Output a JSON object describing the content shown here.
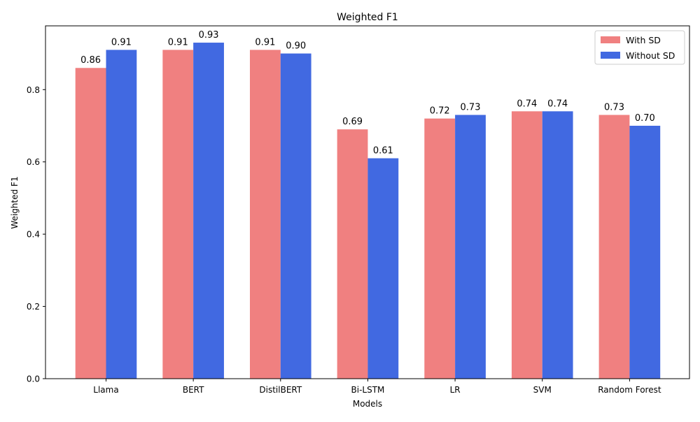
{
  "chart_data": {
    "type": "bar",
    "title": "Weighted F1",
    "xlabel": "Models",
    "ylabel": "Weighted F1",
    "categories": [
      "Llama",
      "BERT",
      "DistilBERT",
      "Bi-LSTM",
      "LR",
      "SVM",
      "Random Forest"
    ],
    "series": [
      {
        "name": "With SD",
        "color": "#f08080",
        "values": [
          0.86,
          0.91,
          0.91,
          0.69,
          0.72,
          0.74,
          0.73
        ],
        "labels": [
          "0.86",
          "0.91",
          "0.91",
          "0.69",
          "0.72",
          "0.74",
          "0.73"
        ]
      },
      {
        "name": "Without SD",
        "color": "#4169e1",
        "values": [
          0.91,
          0.93,
          0.9,
          0.61,
          0.73,
          0.74,
          0.7
        ],
        "labels": [
          "0.91",
          "0.93",
          "0.90",
          "0.61",
          "0.73",
          "0.74",
          "0.70"
        ]
      }
    ],
    "ylim": [
      0,
      0.9765
    ],
    "yticks": [
      "0.0",
      "0.2",
      "0.4",
      "0.6",
      "0.8"
    ],
    "ytick_values": [
      0,
      0.2,
      0.4,
      0.6,
      0.8
    ],
    "legend_position": "top-right",
    "grid": false
  }
}
